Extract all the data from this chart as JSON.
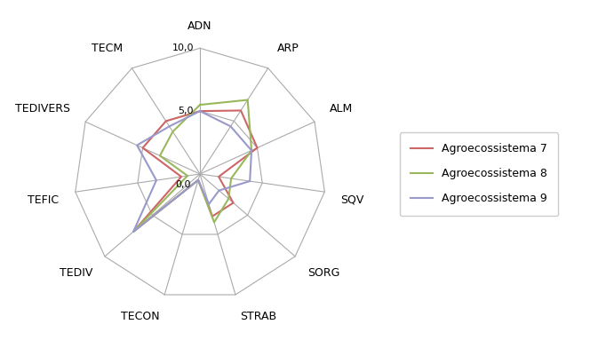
{
  "categories": [
    "ADN",
    "ARP",
    "ALM",
    "SQV",
    "SORG",
    "STRAB",
    "TECON",
    "TEDIV",
    "TEFIC",
    "TEDIVERS",
    "TECM"
  ],
  "series": [
    {
      "label": "Agroecossistema 7",
      "color": "#cd6666",
      "values": [
        5.0,
        6.0,
        5.0,
        1.5,
        3.5,
        3.5,
        0.5,
        7.0,
        1.5,
        5.0,
        5.0
      ]
    },
    {
      "label": "Agroecossistema 8",
      "color": "#99b85c",
      "values": [
        5.5,
        7.0,
        4.5,
        2.5,
        3.0,
        4.0,
        0.5,
        7.0,
        1.0,
        3.5,
        4.0
      ]
    },
    {
      "label": "Agroecossistema 9",
      "color": "#9999cc",
      "values": [
        5.0,
        4.5,
        4.5,
        4.0,
        2.0,
        2.5,
        0.5,
        7.0,
        3.5,
        5.5,
        4.5
      ]
    }
  ],
  "rmin": 0.0,
  "rmax": 10.0,
  "rticks": [
    0.0,
    5.0,
    10.0
  ],
  "rtick_labels": [
    "0,0",
    "5,0",
    "10,0"
  ],
  "background_color": "#ffffff",
  "grid_color": "#aaaaaa",
  "legend_fontsize": 9,
  "figsize": [
    6.82,
    3.92
  ],
  "dpi": 100
}
